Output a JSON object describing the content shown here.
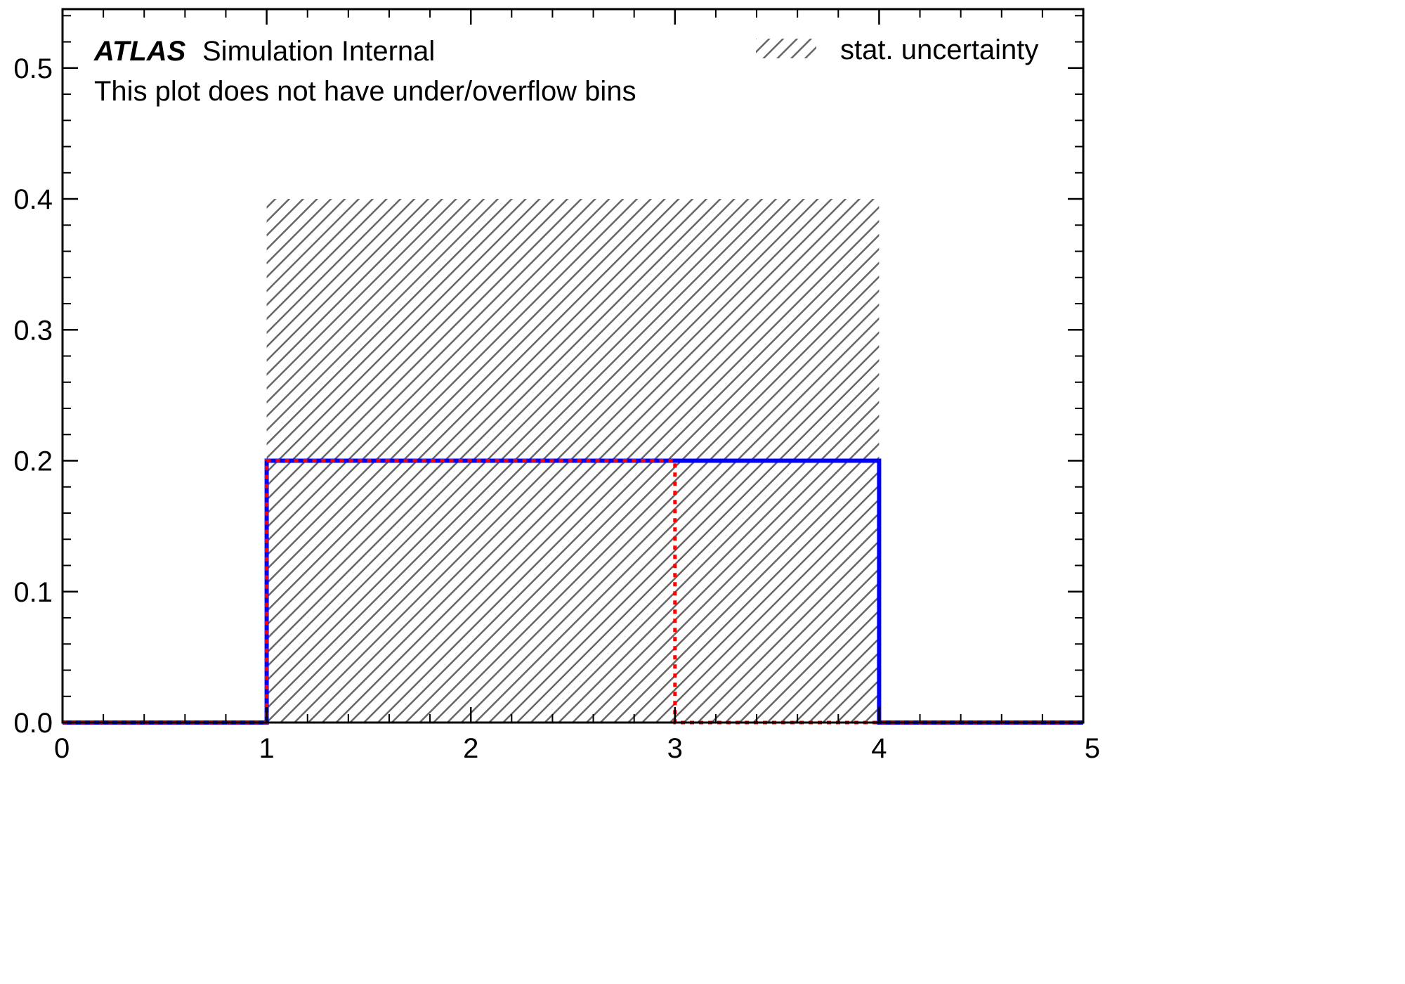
{
  "chart_data": {
    "type": "histogram",
    "x_ticks": [
      "0",
      "1",
      "2",
      "3",
      "4",
      "5"
    ],
    "y_ticks": [
      "0.0",
      "0.1",
      "0.2",
      "0.3",
      "0.4",
      "0.5"
    ],
    "xlim": [
      0,
      5
    ],
    "ylim": [
      0,
      0.545
    ],
    "grid": false,
    "legend_position": "top-right",
    "annotations": {
      "experiment": "ATLAS",
      "label": "Simulation Internal",
      "note": "This plot does not have under/overflow bins"
    },
    "legend": [
      {
        "label": "stat. uncertainty",
        "style": "hatched",
        "color": "#666666"
      }
    ],
    "uncertainty_band": {
      "bins": [
        {
          "x0": 1,
          "x1": 4,
          "y_low": 0.0,
          "y_high": 0.4
        }
      ],
      "color": "#666666"
    },
    "series": [
      {
        "line_style": "solid",
        "color": "#0000ff",
        "edges": [
          0,
          1,
          4,
          5
        ],
        "values": [
          0.0,
          0.2,
          0.0
        ]
      },
      {
        "line_style": "dotted",
        "color": "#ff0000",
        "edges": [
          0,
          1,
          3,
          5
        ],
        "values": [
          0.0,
          0.2,
          0.0
        ]
      }
    ]
  }
}
